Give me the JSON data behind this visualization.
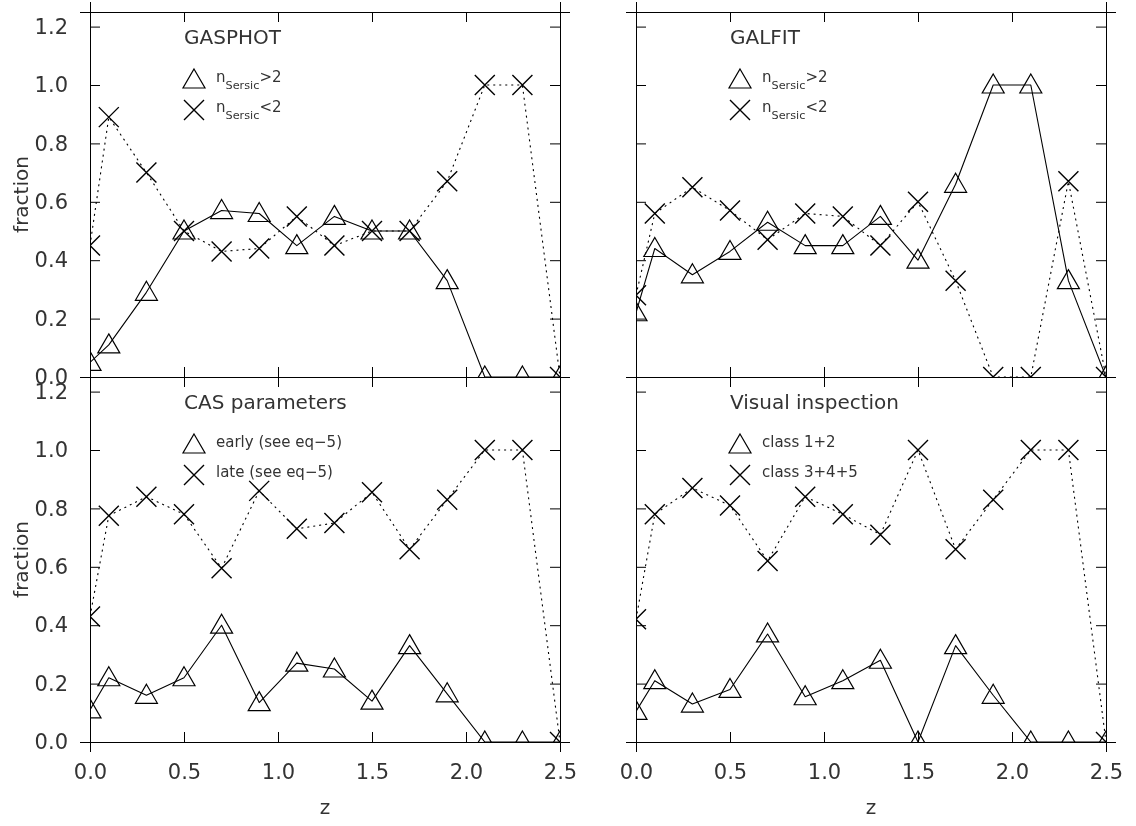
{
  "chart_data": [
    {
      "type": "line",
      "title": "GASPHOT",
      "ylabel": "fraction",
      "xlim": [
        0,
        2.5
      ],
      "ylim": [
        0,
        1.25
      ],
      "xticks": [
        {
          "value": 0,
          "label": null
        },
        {
          "value": 0.5,
          "label": null
        },
        {
          "value": 1,
          "label": null
        },
        {
          "value": 1.5,
          "label": null
        },
        {
          "value": 2,
          "label": null
        },
        {
          "value": 2.5,
          "label": null
        }
      ],
      "yticks": [
        {
          "value": 0,
          "label": "0.0"
        },
        {
          "value": 0.2,
          "label": "0.2"
        },
        {
          "value": 0.4,
          "label": "0.4"
        },
        {
          "value": 0.6,
          "label": "0.6"
        },
        {
          "value": 0.8,
          "label": "0.8"
        },
        {
          "value": 1,
          "label": "1.0"
        },
        {
          "value": 1.2,
          "label": "1.2"
        }
      ],
      "tick_labels": "y",
      "legend": "top left",
      "x": [
        0,
        0.1,
        0.3,
        0.5,
        0.7,
        0.9,
        1.1,
        1.3,
        1.5,
        1.7,
        1.9,
        2.1,
        2.3,
        2.5
      ],
      "series": [
        {
          "name": "n$_{Sersic}$>2",
          "color": "#000000",
          "marker": "triangle",
          "line_style": "solid",
          "values": [
            0.05,
            0.11,
            0.29,
            0.5,
            0.57,
            0.56,
            0.45,
            0.55,
            0.5,
            0.5,
            0.33,
            0,
            0,
            0
          ]
        },
        {
          "name": "n$_{Sersic}$<2",
          "color": "#000000",
          "marker": "cross",
          "line_style": "dotted",
          "values": [
            0.45,
            0.89,
            0.7,
            0.5,
            0.43,
            0.44,
            0.55,
            0.45,
            0.5,
            0.5,
            0.67,
            1,
            1,
            0
          ]
        }
      ]
    },
    {
      "type": "line",
      "title": "GALFIT",
      "xlim": [
        0,
        2.5
      ],
      "ylim": [
        0,
        1.25
      ],
      "xticks": [
        {
          "value": 0,
          "label": null
        },
        {
          "value": 0.5,
          "label": null
        },
        {
          "value": 1,
          "label": null
        },
        {
          "value": 1.5,
          "label": null
        },
        {
          "value": 2,
          "label": null
        },
        {
          "value": 2.5,
          "label": null
        }
      ],
      "yticks": [
        {
          "value": 0,
          "label": null
        },
        {
          "value": 0.2,
          "label": null
        },
        {
          "value": 0.4,
          "label": null
        },
        {
          "value": 0.6,
          "label": null
        },
        {
          "value": 0.8,
          "label": null
        },
        {
          "value": 1,
          "label": null
        },
        {
          "value": 1.2,
          "label": null
        }
      ],
      "tick_labels": false,
      "legend": "top left",
      "x": [
        0,
        0.1,
        0.3,
        0.5,
        0.7,
        0.9,
        1.1,
        1.3,
        1.5,
        1.7,
        1.9,
        2.1,
        2.3,
        2.5
      ],
      "series": [
        {
          "name": "n$_{Sersic}$>2",
          "color": "#000000",
          "marker": "triangle",
          "line_style": "solid",
          "values": [
            0.22,
            0.44,
            0.35,
            0.43,
            0.53,
            0.45,
            0.45,
            0.55,
            0.4,
            0.66,
            1,
            1,
            0.33,
            0
          ]
        },
        {
          "name": "n$_{Sersic}$<2",
          "color": "#000000",
          "marker": "cross",
          "line_style": "dotted",
          "values": [
            0.28,
            0.56,
            0.65,
            0.57,
            0.47,
            0.56,
            0.55,
            0.45,
            0.6,
            0.33,
            0,
            0,
            0.67,
            0
          ]
        }
      ]
    },
    {
      "type": "line",
      "title": "CAS parameters",
      "xlabel": "z",
      "ylabel": "fraction",
      "xlim": [
        0,
        2.5
      ],
      "ylim": [
        0,
        1.25
      ],
      "xticks": [
        {
          "value": 0,
          "label": "0.0"
        },
        {
          "value": 0.5,
          "label": "0.5"
        },
        {
          "value": 1,
          "label": "1.0"
        },
        {
          "value": 1.5,
          "label": "1.5"
        },
        {
          "value": 2,
          "label": "2.0"
        },
        {
          "value": 2.5,
          "label": "2.5"
        }
      ],
      "yticks": [
        {
          "value": 0,
          "label": "0.0"
        },
        {
          "value": 0.2,
          "label": "0.2"
        },
        {
          "value": 0.4,
          "label": "0.4"
        },
        {
          "value": 0.6,
          "label": "0.6"
        },
        {
          "value": 0.8,
          "label": "0.8"
        },
        {
          "value": 1,
          "label": "1.0"
        },
        {
          "value": 1.2,
          "label": "1.2"
        }
      ],
      "legend": "top left",
      "x": [
        0,
        0.1,
        0.3,
        0.5,
        0.7,
        0.9,
        1.1,
        1.3,
        1.5,
        1.7,
        1.9,
        2.1,
        2.3,
        2.5
      ],
      "series": [
        {
          "name": "early (see eq−5)",
          "color": "#000000",
          "marker": "triangle",
          "line_style": "solid",
          "values": [
            0.11,
            0.22,
            0.16,
            0.22,
            0.4,
            0.135,
            0.27,
            0.25,
            0.14,
            0.33,
            0.165,
            0,
            0,
            0
          ]
        },
        {
          "name": "late (see eq−5)",
          "color": "#000000",
          "marker": "cross",
          "line_style": "dotted",
          "values": [
            0.43,
            0.775,
            0.84,
            0.78,
            0.595,
            0.86,
            0.73,
            0.75,
            0.855,
            0.66,
            0.83,
            1,
            1,
            0
          ]
        }
      ]
    },
    {
      "type": "line",
      "title": "Visual inspection",
      "xlabel": "z",
      "xlim": [
        0,
        2.5
      ],
      "ylim": [
        0,
        1.25
      ],
      "xticks": [
        {
          "value": 0,
          "label": "0.0"
        },
        {
          "value": 0.5,
          "label": "0.5"
        },
        {
          "value": 1,
          "label": "1.0"
        },
        {
          "value": 1.5,
          "label": "1.5"
        },
        {
          "value": 2,
          "label": "2.0"
        },
        {
          "value": 2.5,
          "label": "2.5"
        }
      ],
      "yticks": [
        {
          "value": 0,
          "label": null
        },
        {
          "value": 0.2,
          "label": null
        },
        {
          "value": 0.4,
          "label": null
        },
        {
          "value": 0.6,
          "label": null
        },
        {
          "value": 0.8,
          "label": null
        },
        {
          "value": 1,
          "label": null
        },
        {
          "value": 1.2,
          "label": null
        }
      ],
      "tick_labels": "x",
      "legend": "top left",
      "x": [
        0,
        0.1,
        0.3,
        0.5,
        0.7,
        0.9,
        1.1,
        1.3,
        1.5,
        1.7,
        1.9,
        2.1,
        2.3,
        2.5
      ],
      "series": [
        {
          "name": "class 1+2",
          "color": "#000000",
          "marker": "triangle",
          "line_style": "solid",
          "values": [
            0.105,
            0.21,
            0.13,
            0.18,
            0.37,
            0.155,
            0.21,
            0.28,
            0,
            0.33,
            0.16,
            0,
            0,
            0
          ]
        },
        {
          "name": "class 3+4+5",
          "color": "#000000",
          "marker": "cross",
          "line_style": "dotted",
          "values": [
            0.42,
            0.78,
            0.87,
            0.81,
            0.62,
            0.84,
            0.78,
            0.71,
            1,
            0.66,
            0.83,
            1,
            1,
            0
          ]
        }
      ]
    }
  ]
}
